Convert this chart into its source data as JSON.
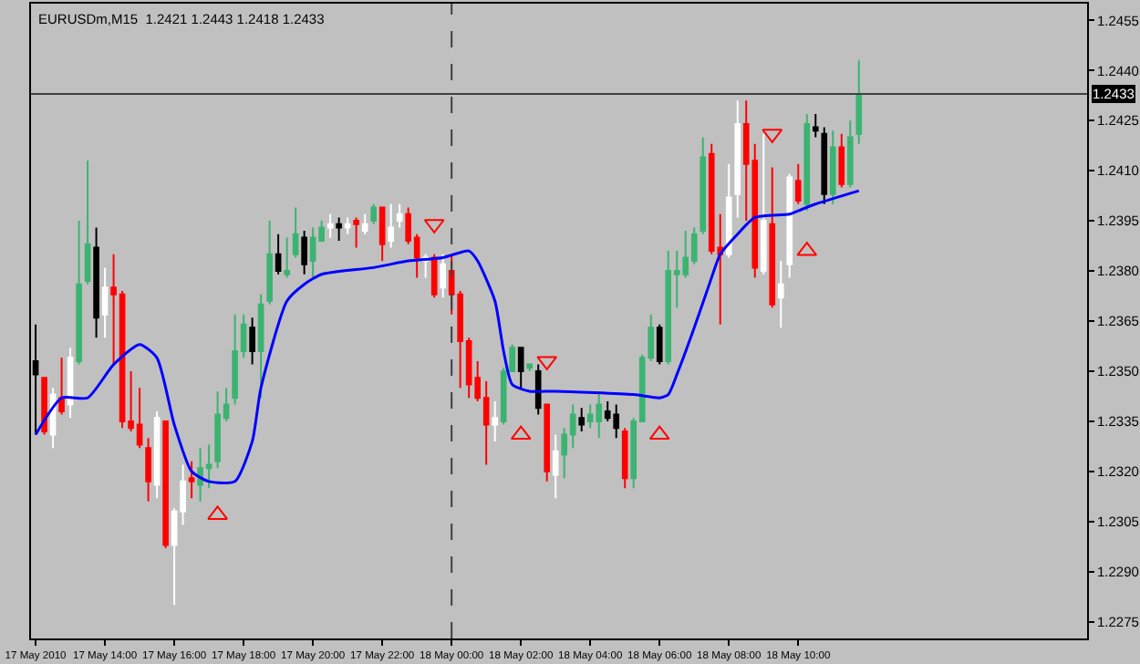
{
  "chart_data": {
    "type": "candlestick",
    "title": "EURUSDm,M15  1.2421 1.2443 1.2418 1.2433",
    "x": [
      "2010-05-17T12:00",
      "2010-05-17T12:15",
      "2010-05-17T12:30",
      "2010-05-17T12:45",
      "2010-05-17T13:00",
      "2010-05-17T13:15",
      "2010-05-17T13:30",
      "2010-05-17T13:45",
      "2010-05-17T14:00",
      "2010-05-17T14:15",
      "2010-05-17T14:30",
      "2010-05-17T14:45",
      "2010-05-17T15:00",
      "2010-05-17T15:15",
      "2010-05-17T15:30",
      "2010-05-17T15:45",
      "2010-05-17T16:00",
      "2010-05-17T16:15",
      "2010-05-17T16:30",
      "2010-05-17T16:45",
      "2010-05-17T17:00",
      "2010-05-17T17:15",
      "2010-05-17T17:30",
      "2010-05-17T17:45",
      "2010-05-17T18:00",
      "2010-05-17T18:15",
      "2010-05-17T18:30",
      "2010-05-17T18:45",
      "2010-05-17T19:00",
      "2010-05-17T19:15",
      "2010-05-17T19:30",
      "2010-05-17T19:45",
      "2010-05-17T20:00",
      "2010-05-17T20:15",
      "2010-05-17T20:30",
      "2010-05-17T20:45",
      "2010-05-17T21:00",
      "2010-05-17T21:15",
      "2010-05-17T21:30",
      "2010-05-17T21:45",
      "2010-05-17T22:00",
      "2010-05-17T22:15",
      "2010-05-17T22:30",
      "2010-05-17T22:45",
      "2010-05-17T23:00",
      "2010-05-17T23:15",
      "2010-05-17T23:30",
      "2010-05-17T23:45",
      "2010-05-18T00:00",
      "2010-05-18T00:15",
      "2010-05-18T00:30",
      "2010-05-18T00:45",
      "2010-05-18T01:00",
      "2010-05-18T01:15",
      "2010-05-18T01:30",
      "2010-05-18T01:45",
      "2010-05-18T02:00",
      "2010-05-18T02:15",
      "2010-05-18T02:30",
      "2010-05-18T02:45",
      "2010-05-18T03:00",
      "2010-05-18T03:15",
      "2010-05-18T03:30",
      "2010-05-18T03:45",
      "2010-05-18T04:00",
      "2010-05-18T04:15",
      "2010-05-18T04:30",
      "2010-05-18T04:45",
      "2010-05-18T05:00",
      "2010-05-18T05:15",
      "2010-05-18T05:30",
      "2010-05-18T05:45",
      "2010-05-18T06:00",
      "2010-05-18T06:15",
      "2010-05-18T06:30",
      "2010-05-18T06:45",
      "2010-05-18T07:00",
      "2010-05-18T07:15",
      "2010-05-18T07:30",
      "2010-05-18T07:45",
      "2010-05-18T08:00",
      "2010-05-18T08:15",
      "2010-05-18T08:30",
      "2010-05-18T08:45",
      "2010-05-18T09:00",
      "2010-05-18T09:15",
      "2010-05-18T09:30",
      "2010-05-18T09:45",
      "2010-05-18T10:00",
      "2010-05-18T10:15",
      "2010-05-18T10:30",
      "2010-05-18T10:45",
      "2010-05-18T11:00",
      "2010-05-18T11:15",
      "2010-05-18T11:30",
      "2010-05-18T11:45"
    ],
    "ohlc": [
      [
        1.2353,
        1.2364,
        1.2331,
        1.2349
      ],
      [
        1.2348,
        1.2348,
        1.2331,
        1.2332
      ],
      [
        1.2331,
        1.2345,
        1.2327,
        1.2343
      ],
      [
        1.2342,
        1.2354,
        1.2337,
        1.2338
      ],
      [
        1.234,
        1.2357,
        1.2336,
        1.2354
      ],
      [
        1.2353,
        1.2395,
        1.2352,
        1.2376
      ],
      [
        1.2377,
        1.2413,
        1.2376,
        1.2388
      ],
      [
        1.2387,
        1.2393,
        1.236,
        1.2366
      ],
      [
        1.2367,
        1.2381,
        1.236,
        1.2375
      ],
      [
        1.2375,
        1.2385,
        1.2352,
        1.2373
      ],
      [
        1.2373,
        1.2374,
        1.2333,
        1.2335
      ],
      [
        1.2335,
        1.235,
        1.2332,
        1.2333
      ],
      [
        1.2334,
        1.2345,
        1.2327,
        1.2328
      ],
      [
        1.2327,
        1.233,
        1.2311,
        1.2317
      ],
      [
        1.2316,
        1.2338,
        1.2312,
        1.2336
      ],
      [
        1.2335,
        1.2335,
        1.2297,
        1.2298
      ],
      [
        1.2298,
        1.2309,
        1.228,
        1.2308
      ],
      [
        1.2308,
        1.2322,
        1.2304,
        1.2317
      ],
      [
        1.2318,
        1.2323,
        1.2312,
        1.2317
      ],
      [
        1.2316,
        1.2327,
        1.2311,
        1.2321
      ],
      [
        1.2321,
        1.2328,
        1.2315,
        1.2322
      ],
      [
        1.2323,
        1.2344,
        1.2321,
        1.2337
      ],
      [
        1.2336,
        1.2345,
        1.2335,
        1.234
      ],
      [
        1.2342,
        1.2367,
        1.234,
        1.2356
      ],
      [
        1.2356,
        1.2367,
        1.2354,
        1.2364
      ],
      [
        1.2363,
        1.2366,
        1.2352,
        1.2356
      ],
      [
        1.2356,
        1.2373,
        1.2342,
        1.237
      ],
      [
        1.2371,
        1.2395,
        1.237,
        1.2385
      ],
      [
        1.2385,
        1.2391,
        1.2379,
        1.238
      ],
      [
        1.2379,
        1.239,
        1.2378,
        1.238
      ],
      [
        1.2385,
        1.2399,
        1.2384,
        1.2391
      ],
      [
        1.239,
        1.2392,
        1.2379,
        1.2382
      ],
      [
        1.2383,
        1.2393,
        1.2378,
        1.239
      ],
      [
        1.2389,
        1.2395,
        1.2389,
        1.2393
      ],
      [
        1.2393,
        1.2397,
        1.239,
        1.2394
      ],
      [
        1.2394,
        1.2396,
        1.2389,
        1.2393
      ],
      [
        1.2393,
        1.2396,
        1.2391,
        1.2394
      ],
      [
        1.2395,
        1.2396,
        1.2387,
        1.2394
      ],
      [
        1.2392,
        1.2397,
        1.2391,
        1.2394
      ],
      [
        1.2395,
        1.24,
        1.2394,
        1.2399
      ],
      [
        1.2399,
        1.2399,
        1.2383,
        1.2388
      ],
      [
        1.2389,
        1.24,
        1.2387,
        1.2393
      ],
      [
        1.2395,
        1.24,
        1.2393,
        1.2397
      ],
      [
        1.2397,
        1.2399,
        1.2388,
        1.2389
      ],
      [
        1.239,
        1.2391,
        1.2378,
        1.2384
      ],
      [
        1.2383,
        1.2385,
        1.2378,
        1.2384
      ],
      [
        1.2384,
        1.2385,
        1.2372,
        1.2373
      ],
      [
        1.2375,
        1.2385,
        1.2372,
        1.2382
      ],
      [
        1.238,
        1.2385,
        1.2367,
        1.2373
      ],
      [
        1.2373,
        1.2374,
        1.2345,
        1.2359
      ],
      [
        1.2359,
        1.236,
        1.2342,
        1.2346
      ],
      [
        1.2348,
        1.2353,
        1.2341,
        1.2342
      ],
      [
        1.2342,
        1.2347,
        1.2322,
        1.2334
      ],
      [
        1.2334,
        1.2341,
        1.2329,
        1.2336
      ],
      [
        1.2335,
        1.2351,
        1.2334,
        1.235
      ],
      [
        1.235,
        1.2358,
        1.235,
        1.2357
      ],
      [
        1.2357,
        1.2357,
        1.2345,
        1.235
      ],
      [
        1.2351,
        1.2352,
        1.235,
        1.2352
      ],
      [
        1.235,
        1.2352,
        1.2337,
        1.2339
      ],
      [
        1.234,
        1.234,
        1.2317,
        1.232
      ],
      [
        1.2319,
        1.2331,
        1.2312,
        1.2326
      ],
      [
        1.2325,
        1.2333,
        1.2318,
        1.2331
      ],
      [
        1.2331,
        1.234,
        1.2327,
        1.2337
      ],
      [
        1.2336,
        1.2339,
        1.2332,
        1.2334
      ],
      [
        1.2335,
        1.234,
        1.2333,
        1.2337
      ],
      [
        1.2335,
        1.2344,
        1.233,
        1.234
      ],
      [
        1.2338,
        1.2341,
        1.2335,
        1.2336
      ],
      [
        1.2337,
        1.234,
        1.233,
        1.2333
      ],
      [
        1.2332,
        1.2333,
        1.2315,
        1.2318
      ],
      [
        1.2318,
        1.2336,
        1.2315,
        1.2335
      ],
      [
        1.2335,
        1.2355,
        1.2335,
        1.2354
      ],
      [
        1.2354,
        1.2367,
        1.2353,
        1.2363
      ],
      [
        1.2363,
        1.2364,
        1.2352,
        1.2353
      ],
      [
        1.2353,
        1.2386,
        1.2352,
        1.238
      ],
      [
        1.2379,
        1.2386,
        1.2369,
        1.238
      ],
      [
        1.2379,
        1.2392,
        1.2378,
        1.2384
      ],
      [
        1.2383,
        1.2393,
        1.2382,
        1.2391
      ],
      [
        1.2392,
        1.242,
        1.2391,
        1.2414
      ],
      [
        1.2415,
        1.2418,
        1.2385,
        1.2386
      ],
      [
        1.2387,
        1.2397,
        1.2364,
        1.2385
      ],
      [
        1.2385,
        1.2412,
        1.2384,
        1.2402
      ],
      [
        1.2403,
        1.2431,
        1.2396,
        1.2424
      ],
      [
        1.2424,
        1.2431,
        1.2395,
        1.2412
      ],
      [
        1.2413,
        1.2418,
        1.2378,
        1.2381
      ],
      [
        1.238,
        1.2421,
        1.2379,
        1.2395
      ],
      [
        1.2394,
        1.2411,
        1.2369,
        1.237
      ],
      [
        1.2372,
        1.2383,
        1.2363,
        1.2376
      ],
      [
        1.2382,
        1.2409,
        1.2378,
        1.2408
      ],
      [
        1.2407,
        1.2412,
        1.24,
        1.2401
      ],
      [
        1.24,
        1.2427,
        1.2398,
        1.2424
      ],
      [
        1.2423,
        1.2427,
        1.242,
        1.2422
      ],
      [
        1.2421,
        1.2423,
        1.24,
        1.2403
      ],
      [
        1.2403,
        1.2422,
        1.24,
        1.2417
      ],
      [
        1.2417,
        1.2421,
        1.2405,
        1.2406
      ],
      [
        1.2406,
        1.2425,
        1.2405,
        1.242
      ],
      [
        1.2421,
        1.2443,
        1.2418,
        1.2433
      ]
    ],
    "colors": [
      "#000000",
      "#ff0000",
      "#ffffff",
      "#ff0000",
      "#ffffff",
      "#3cb371",
      "#3cb371",
      "#000000",
      "#ffffff",
      "#ff0000",
      "#ff0000",
      "#ff0000",
      "#ff0000",
      "#ff0000",
      "#ffffff",
      "#ff0000",
      "#ffffff",
      "#ffffff",
      "#ff0000",
      "#3cb371",
      "#3cb371",
      "#3cb371",
      "#3cb371",
      "#3cb371",
      "#3cb371",
      "#000000",
      "#3cb371",
      "#3cb371",
      "#000000",
      "#3cb371",
      "#3cb371",
      "#000000",
      "#3cb371",
      "#3cb371",
      "#ffffff",
      "#000000",
      "#ffffff",
      "#ff0000",
      "#ffffff",
      "#3cb371",
      "#ff0000",
      "#ffffff",
      "#ffffff",
      "#ff0000",
      "#ff0000",
      "#ffffff",
      "#ff0000",
      "#ffffff",
      "#ff0000",
      "#ff0000",
      "#ff0000",
      "#ff0000",
      "#ff0000",
      "#ffffff",
      "#3cb371",
      "#3cb371",
      "#000000",
      "#3cb371",
      "#000000",
      "#ff0000",
      "#ffffff",
      "#3cb371",
      "#3cb371",
      "#000000",
      "#3cb371",
      "#3cb371",
      "#000000",
      "#000000",
      "#ff0000",
      "#3cb371",
      "#3cb371",
      "#3cb371",
      "#000000",
      "#3cb371",
      "#3cb371",
      "#3cb371",
      "#3cb371",
      "#3cb371",
      "#ff0000",
      "#ff0000",
      "#ffffff",
      "#ffffff",
      "#ff0000",
      "#ff0000",
      "#ffffff",
      "#ff0000",
      "#ffffff",
      "#ffffff",
      "#ff0000",
      "#3cb371",
      "#000000",
      "#000000",
      "#3cb371",
      "#ff0000",
      "#3cb371",
      "#3cb371"
    ],
    "series": [
      {
        "type": "line",
        "color": "#0000ff",
        "marker": "none",
        "x": [
          "2010-05-17T12:00",
          "2010-05-17T12:45",
          "2010-05-17T13:30",
          "2010-05-17T14:15",
          "2010-05-17T15:00",
          "2010-05-17T15:30",
          "2010-05-17T16:00",
          "2010-05-17T16:30",
          "2010-05-17T17:00",
          "2010-05-17T17:45",
          "2010-05-17T18:15",
          "2010-05-17T18:30",
          "2010-05-17T19:15",
          "2010-05-17T19:45",
          "2010-05-17T20:15",
          "2010-05-17T21:45",
          "2010-05-17T22:45",
          "2010-05-17T23:45",
          "2010-05-18T00:30",
          "2010-05-18T00:45",
          "2010-05-18T01:15",
          "2010-05-18T01:30",
          "2010-05-18T01:45",
          "2010-05-18T02:15",
          "2010-05-18T03:00",
          "2010-05-18T05:15",
          "2010-05-18T06:00",
          "2010-05-18T06:15",
          "2010-05-18T06:30",
          "2010-05-18T07:00",
          "2010-05-18T07:30",
          "2010-05-18T07:45",
          "2010-05-18T08:15",
          "2010-05-18T08:45",
          "2010-05-18T09:45",
          "2010-05-18T10:00",
          "2010-05-18T10:30",
          "2010-05-18T11:45"
        ],
        "values": [
          1.2331,
          1.2342,
          1.2342,
          1.2352,
          1.2358,
          1.2354,
          1.2334,
          1.232,
          1.2317,
          1.2317,
          1.2329,
          1.2345,
          1.2371,
          1.2376,
          1.2379,
          1.2381,
          1.2383,
          1.2384,
          1.2386,
          1.2383,
          1.2371,
          1.2356,
          1.2346,
          1.2344,
          1.2344,
          1.2343,
          1.2342,
          1.2343,
          1.2349,
          1.2363,
          1.2378,
          1.2385,
          1.2391,
          1.2396,
          1.2397,
          1.2398,
          1.24,
          1.2404
        ]
      },
      {
        "type": "scatter",
        "color": "#ff0000",
        "marker": "triangle",
        "x": [
          "2010-05-17T17:15",
          "2010-05-18T02:00",
          "2010-05-18T06:00",
          "2010-05-18T10:15"
        ],
        "values": [
          1.2307,
          1.2331,
          1.2331,
          1.2386
        ]
      },
      {
        "type": "scatter",
        "color": "#ff0000",
        "marker": "triangle",
        "x": [
          "2010-05-17T23:30",
          "2010-05-18T02:45",
          "2010-05-18T09:15"
        ],
        "values": [
          1.2394,
          1.2353,
          1.2421
        ]
      }
    ],
    "xlim": [
      "2010-05-17T11:52",
      "2010-05-18T18:20"
    ],
    "xticks": [
      {
        "value": "2010-05-17T12:00",
        "label": "17 May 2010"
      },
      {
        "value": "2010-05-17T14:00",
        "label": "17 May 14:00"
      },
      {
        "value": "2010-05-17T16:00",
        "label": "17 May 16:00"
      },
      {
        "value": "2010-05-17T18:00",
        "label": "17 May 18:00"
      },
      {
        "value": "2010-05-17T20:00",
        "label": "17 May 20:00"
      },
      {
        "value": "2010-05-17T22:00",
        "label": "17 May 22:00"
      },
      {
        "value": "2010-05-18T00:00",
        "label": "18 May 00:00"
      },
      {
        "value": "2010-05-18T02:00",
        "label": "18 May 02:00"
      },
      {
        "value": "2010-05-18T04:00",
        "label": "18 May 04:00"
      },
      {
        "value": "2010-05-18T06:00",
        "label": "18 May 06:00"
      },
      {
        "value": "2010-05-18T08:00",
        "label": "18 May 08:00"
      },
      {
        "value": "2010-05-18T10:00",
        "label": "18 May 10:00"
      }
    ],
    "ylim": [
      1.227,
      1.246
    ],
    "yticks": [
      1.2275,
      {
        "value": 1.229,
        "label": "1.2290"
      },
      1.2305,
      {
        "value": 1.232,
        "label": "1.2320"
      },
      1.2335,
      {
        "value": 1.235,
        "label": "1.2350"
      },
      1.2365,
      {
        "value": 1.238,
        "label": "1.2380"
      },
      1.2395,
      {
        "value": 1.241,
        "label": "1.2410"
      },
      1.2425,
      {
        "value": 1.244,
        "label": "1.2440"
      },
      1.2455
    ],
    "ref_lines": [
      {
        "axis": "x",
        "value": "2010-05-18T00:00",
        "color": "#404040",
        "line_style": "dashed"
      },
      {
        "axis": "y",
        "value": 1.2433,
        "label": "1.2433",
        "color": "#404040",
        "line_style": "solid"
      }
    ],
    "grid": false
  }
}
